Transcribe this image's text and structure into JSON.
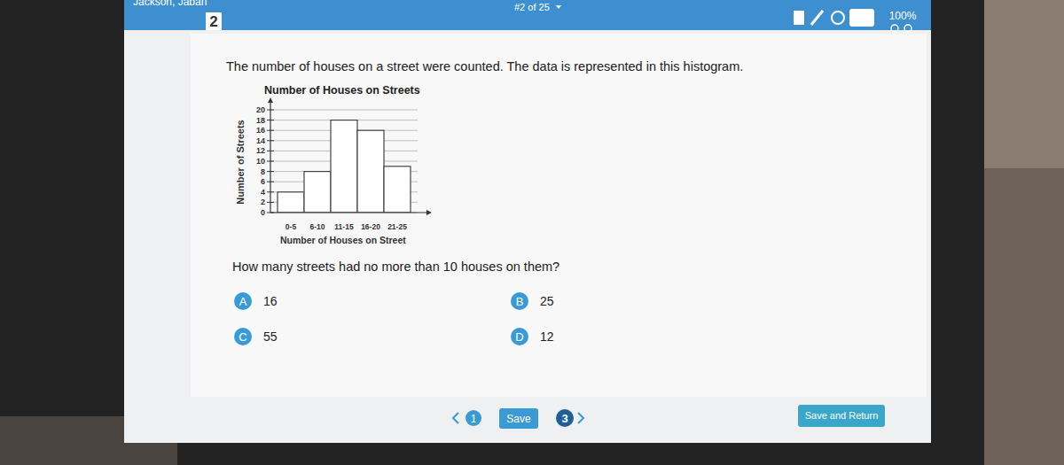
{
  "header": {
    "user": "Jackson, Jaban",
    "question_number": "2",
    "progress": "#2 of 25",
    "zoom": "100%"
  },
  "prompt": "The number of houses on a street were counted.  The data is represented in this histogram.",
  "chart_data": {
    "type": "histogram",
    "title": "Number of Houses on Streets",
    "x_label": "Number of Houses on Street",
    "y_label": "Number of Streets",
    "categories": [
      "0-5",
      "6-10",
      "11-15",
      "16-20",
      "21-25"
    ],
    "values": [
      4,
      8,
      18,
      16,
      9
    ],
    "color": "#ffffff",
    "ylim": [
      0,
      20
    ],
    "yticks": [
      0,
      2,
      4,
      6,
      8,
      10,
      12,
      14,
      16,
      18,
      20
    ],
    "grid": true
  },
  "question": "How many streets had no more than 10 houses on them?",
  "choices": [
    {
      "letter": "A",
      "text": "16"
    },
    {
      "letter": "B",
      "text": "25"
    },
    {
      "letter": "C",
      "text": "55"
    },
    {
      "letter": "D",
      "text": "12"
    }
  ],
  "nav": {
    "previous": "1",
    "save": "Save",
    "next": "3",
    "save_return": "Save and Return"
  }
}
